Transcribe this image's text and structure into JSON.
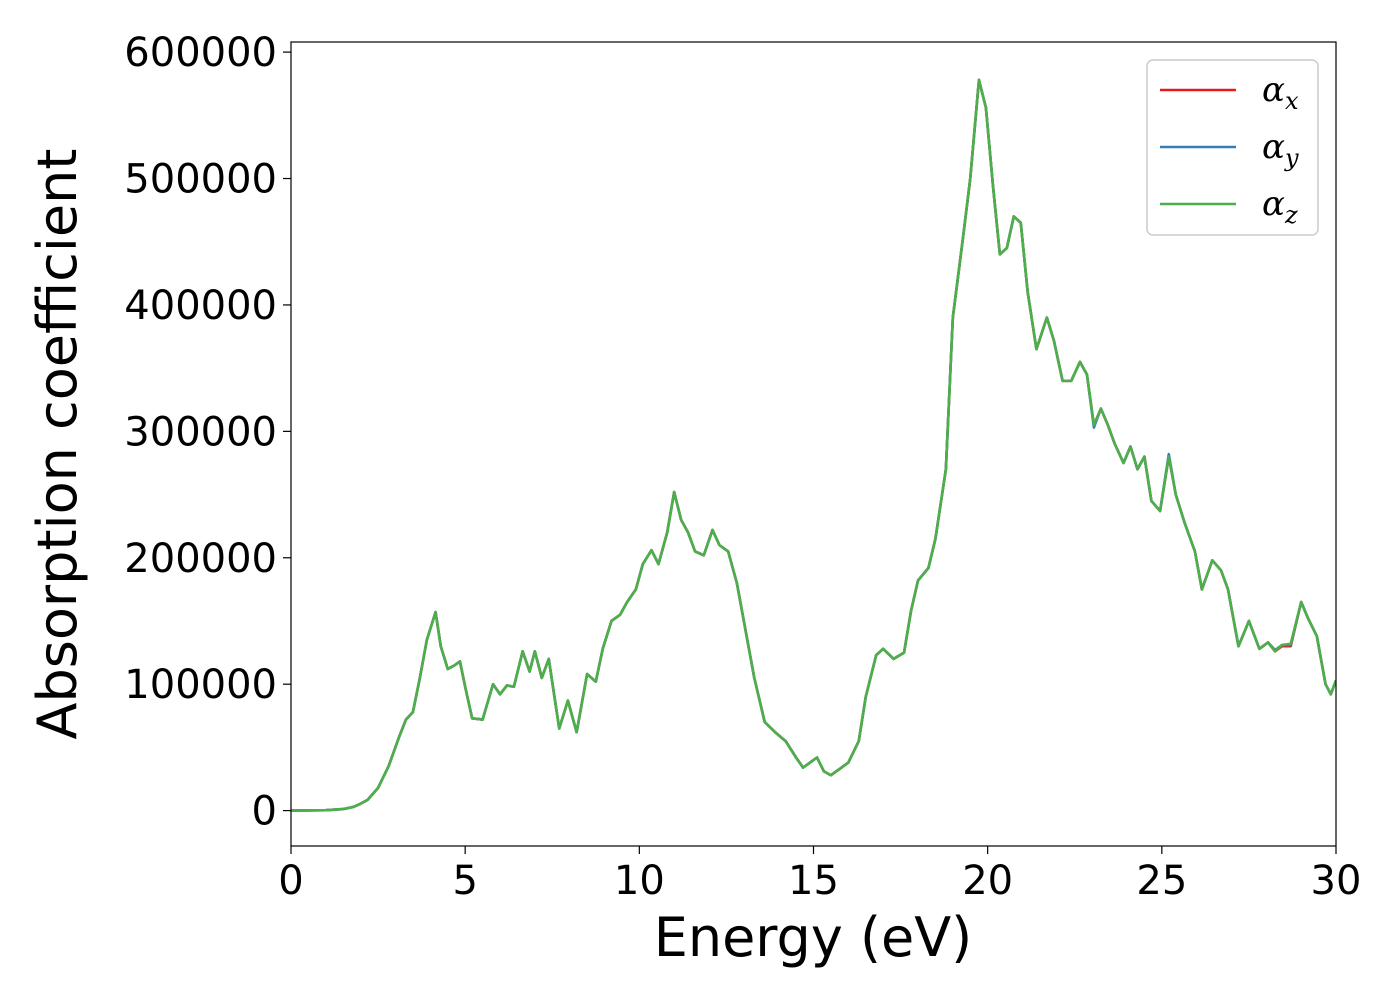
{
  "chart_data": {
    "type": "line",
    "title": "",
    "xlabel": "Energy (eV)",
    "ylabel": "Absorption coefficient",
    "xlim": [
      0,
      30
    ],
    "ylim": [
      -28000,
      608000
    ],
    "xticks": [
      0,
      5,
      10,
      15,
      20,
      25,
      30
    ],
    "xtick_labels": [
      "0",
      "5",
      "10",
      "15",
      "20",
      "25",
      "30"
    ],
    "yticks": [
      0,
      100000,
      200000,
      300000,
      400000,
      500000,
      600000
    ],
    "ytick_labels": [
      "0",
      "100000",
      "200000",
      "300000",
      "400000",
      "500000",
      "600000"
    ],
    "grid": false,
    "legend_position": "top-right",
    "x": [
      0,
      1.0,
      1.5,
      1.8,
      2.0,
      2.2,
      2.5,
      2.8,
      3.1,
      3.3,
      3.5,
      3.7,
      3.9,
      4.15,
      4.3,
      4.5,
      4.7,
      4.85,
      5.0,
      5.2,
      5.5,
      5.8,
      6.0,
      6.2,
      6.4,
      6.65,
      6.85,
      7.0,
      7.2,
      7.4,
      7.7,
      7.95,
      8.2,
      8.5,
      8.75,
      8.95,
      9.2,
      9.45,
      9.65,
      9.9,
      10.1,
      10.35,
      10.55,
      10.8,
      11.0,
      11.2,
      11.4,
      11.6,
      11.85,
      12.1,
      12.3,
      12.55,
      12.8,
      13.0,
      13.3,
      13.6,
      13.9,
      14.2,
      14.5,
      14.7,
      14.9,
      15.1,
      15.3,
      15.5,
      15.75,
      16.0,
      16.3,
      16.5,
      16.8,
      17.0,
      17.3,
      17.6,
      17.8,
      18.0,
      18.3,
      18.5,
      18.8,
      19.0,
      19.3,
      19.5,
      19.75,
      19.95,
      20.15,
      20.35,
      20.55,
      20.75,
      20.95,
      21.15,
      21.4,
      21.7,
      21.9,
      22.15,
      22.4,
      22.65,
      22.85,
      23.05,
      23.25,
      23.45,
      23.65,
      23.9,
      24.1,
      24.3,
      24.5,
      24.7,
      24.95,
      25.2,
      25.4,
      25.65,
      25.95,
      26.15,
      26.45,
      26.7,
      26.9,
      27.2,
      27.5,
      27.8,
      28.05,
      28.25,
      28.45,
      28.7,
      29.0,
      29.2,
      29.45,
      29.7,
      29.85,
      30.0
    ],
    "series": [
      {
        "name": "α_x",
        "legend_symbol": "α",
        "legend_subscript": "x",
        "color": "#e41a1c",
        "values": [
          0,
          300,
          1200,
          3000,
          5500,
          8500,
          18000,
          35000,
          58000,
          72000,
          78000,
          105000,
          135000,
          157000,
          130000,
          112000,
          115000,
          118000,
          98000,
          73000,
          72000,
          100000,
          92000,
          99000,
          98000,
          126000,
          110000,
          126000,
          105000,
          120000,
          65000,
          87000,
          62000,
          108000,
          102000,
          128000,
          150000,
          155000,
          165000,
          175000,
          195000,
          206000,
          195000,
          220000,
          252000,
          230000,
          220000,
          205000,
          202000,
          222000,
          210000,
          205000,
          180000,
          150000,
          105000,
          70000,
          62000,
          55000,
          42000,
          34000,
          38000,
          42000,
          31000,
          28000,
          33000,
          38000,
          55000,
          90000,
          123000,
          128000,
          120000,
          125000,
          158000,
          182000,
          192000,
          215000,
          270000,
          390000,
          455000,
          500000,
          578000,
          556000,
          495000,
          440000,
          445000,
          470000,
          465000,
          410000,
          365000,
          390000,
          372000,
          340000,
          340000,
          355000,
          345000,
          305000,
          318000,
          305000,
          290000,
          275000,
          288000,
          270000,
          280000,
          245000,
          237000,
          280000,
          250000,
          228000,
          205000,
          175000,
          198000,
          190000,
          175000,
          130000,
          150000,
          128000,
          133000,
          126000,
          130000,
          130000,
          165000,
          152000,
          138000,
          100000,
          92000,
          103000
        ]
      },
      {
        "name": "α_y",
        "legend_symbol": "α",
        "legend_subscript": "y",
        "color": "#377eb8",
        "values": [
          0,
          300,
          1200,
          3000,
          5500,
          8500,
          18000,
          35000,
          58000,
          72000,
          78000,
          105000,
          135000,
          157000,
          130000,
          112000,
          115000,
          118000,
          98000,
          73000,
          72000,
          100000,
          92000,
          99000,
          98000,
          126000,
          110000,
          126000,
          105000,
          120000,
          65000,
          87000,
          62000,
          108000,
          102000,
          128000,
          150000,
          155000,
          165000,
          175000,
          195000,
          206000,
          195000,
          220000,
          252000,
          230000,
          220000,
          205000,
          202000,
          222000,
          210000,
          205000,
          180000,
          150000,
          105000,
          70000,
          62000,
          55000,
          42000,
          34000,
          38000,
          42000,
          31000,
          28000,
          33000,
          38000,
          55000,
          90000,
          123000,
          128000,
          120000,
          125000,
          158000,
          182000,
          192000,
          215000,
          270000,
          390000,
          455000,
          500000,
          578000,
          556000,
          495000,
          440000,
          445000,
          470000,
          465000,
          410000,
          365000,
          390000,
          372000,
          340000,
          340000,
          355000,
          345000,
          303000,
          318000,
          305000,
          290000,
          275000,
          288000,
          270000,
          280000,
          245000,
          237000,
          282000,
          250000,
          228000,
          205000,
          175000,
          198000,
          190000,
          175000,
          130000,
          150000,
          128000,
          133000,
          127000,
          131000,
          131000,
          165000,
          152000,
          138000,
          100000,
          92000,
          103000
        ]
      },
      {
        "name": "α_z",
        "legend_symbol": "α",
        "legend_subscript": "z",
        "color": "#4daf4a",
        "values": [
          0,
          300,
          1200,
          3000,
          5500,
          8500,
          18000,
          35000,
          58000,
          72000,
          78000,
          105000,
          135000,
          157000,
          130000,
          112000,
          115000,
          118000,
          98000,
          73000,
          72000,
          100000,
          92000,
          99000,
          98000,
          126000,
          110000,
          126000,
          105000,
          120000,
          65000,
          87000,
          62000,
          108000,
          102000,
          128000,
          150000,
          155000,
          165000,
          175000,
          195000,
          206000,
          195000,
          220000,
          252000,
          230000,
          220000,
          205000,
          202000,
          222000,
          210000,
          205000,
          180000,
          150000,
          105000,
          70000,
          62000,
          55000,
          42000,
          34000,
          38000,
          42000,
          31000,
          28000,
          33000,
          38000,
          55000,
          90000,
          123000,
          128000,
          120000,
          125000,
          158000,
          182000,
          192000,
          215000,
          270000,
          390000,
          455000,
          500000,
          578000,
          556000,
          495000,
          440000,
          445000,
          470000,
          465000,
          410000,
          365000,
          390000,
          372000,
          340000,
          340000,
          355000,
          345000,
          305000,
          318000,
          305000,
          290000,
          275000,
          288000,
          270000,
          280000,
          245000,
          237000,
          280000,
          250000,
          228000,
          205000,
          175000,
          198000,
          190000,
          175000,
          130000,
          150000,
          128000,
          133000,
          126000,
          131000,
          132000,
          165000,
          152000,
          138000,
          100000,
          92000,
          103000
        ]
      }
    ]
  }
}
